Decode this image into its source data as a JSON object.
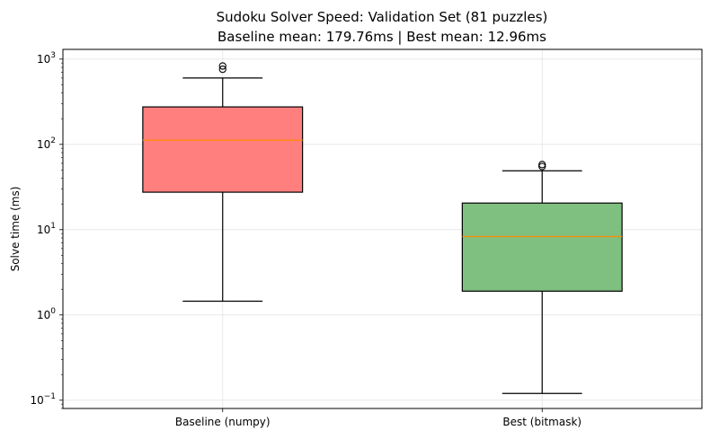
{
  "chart_data": {
    "type": "box",
    "title": "Sudoku Solver Speed: Validation Set (81 puzzles)",
    "subtitle": "Baseline mean: 179.76ms | Best mean: 12.96ms",
    "xlabel": "",
    "ylabel": "Solve time (ms)",
    "yscale": "log",
    "ylim": [
      0.08,
      1300
    ],
    "grid": true,
    "categories": [
      "Baseline (numpy)",
      "Best (bitmask)"
    ],
    "y_tick_labels": [
      {
        "base": "10",
        "exp": "-1",
        "value": 0.1
      },
      {
        "base": "10",
        "exp": "0",
        "value": 1
      },
      {
        "base": "10",
        "exp": "1",
        "value": 10
      },
      {
        "base": "10",
        "exp": "2",
        "value": 100
      },
      {
        "base": "10",
        "exp": "3",
        "value": 1000
      }
    ],
    "series": [
      {
        "category": "Baseline (numpy)",
        "color": "#ff7f7f",
        "whisker_low": 1.45,
        "q1": 27.5,
        "median": 112,
        "q3": 275,
        "whisker_high": 600,
        "outliers": [
          760,
          830
        ]
      },
      {
        "category": "Best (bitmask)",
        "color": "#7fbf7f",
        "whisker_low": 0.12,
        "q1": 1.9,
        "median": 8.3,
        "q3": 20.5,
        "whisker_high": 49,
        "outliers": [
          55,
          58
        ]
      }
    ],
    "median_color": "#ff8c00"
  }
}
